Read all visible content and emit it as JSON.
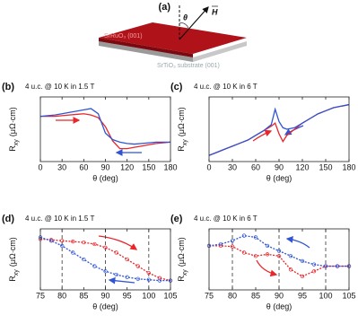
{
  "diagram": {
    "label": "(a)",
    "film": "SrRuO₃ (001)",
    "substrate": "SrTiO₃ substrate (001)",
    "angle": "θ",
    "field": "H"
  },
  "chart_data": [
    {
      "type": "line",
      "panel": "(b)",
      "title": "4 u.c. @ 10 K in 1.5 T",
      "xlabel": "θ (deg)",
      "ylabel": "R",
      "ylabel_sub": "xy",
      "ylabel_unit": "(μΩ·cm)",
      "xlim": [
        0,
        180
      ],
      "xticks": [
        0,
        30,
        60,
        90,
        120,
        150,
        180
      ],
      "ylim": [
        -2.5,
        2.5
      ],
      "markers": false,
      "x": [
        0,
        10,
        20,
        30,
        40,
        50,
        60,
        70,
        80,
        90,
        100,
        110,
        120,
        130,
        140,
        150,
        160,
        170,
        180
      ],
      "series": [
        {
          "color": "#e8262b",
          "values": [
            1.0,
            1.0,
            1.0,
            1.05,
            1.1,
            1.15,
            1.2,
            1.1,
            0.9,
            0.2,
            -0.9,
            -1.5,
            -1.5,
            -1.4,
            -1.3,
            -1.2,
            -1.1,
            -1.05,
            -1.0
          ]
        },
        {
          "color": "#2f55d4",
          "values": [
            1.0,
            1.05,
            1.1,
            1.2,
            1.3,
            1.4,
            1.5,
            1.6,
            1.2,
            -0.3,
            -0.8,
            -1.0,
            -1.1,
            -1.15,
            -1.1,
            -1.05,
            -1.0,
            -1.0,
            -1.0
          ]
        }
      ]
    },
    {
      "type": "line",
      "panel": "(c)",
      "title": "4 u.c. @ 10 K in 6 T",
      "xlabel": "θ (deg)",
      "ylabel": "R",
      "ylabel_sub": "xy",
      "ylabel_unit": "(μΩ·cm)",
      "xlim": [
        0,
        180
      ],
      "xticks": [
        0,
        30,
        60,
        90,
        120,
        150,
        180
      ],
      "ylim": [
        -0.8,
        1.3
      ],
      "markers": false,
      "x": [
        0,
        10,
        20,
        30,
        40,
        50,
        60,
        70,
        80,
        85,
        90,
        95,
        100,
        110,
        120,
        130,
        140,
        150,
        160,
        170,
        180
      ],
      "series": [
        {
          "color": "#e8262b",
          "values": [
            -0.6,
            -0.5,
            -0.4,
            -0.3,
            -0.2,
            -0.1,
            0.05,
            0.2,
            0.35,
            0.45,
            0.1,
            -0.15,
            0.05,
            0.25,
            0.45,
            0.6,
            0.75,
            0.85,
            0.95,
            1.0,
            1.05
          ]
        },
        {
          "color": "#2f55d4",
          "values": [
            -0.6,
            -0.5,
            -0.4,
            -0.3,
            -0.2,
            -0.1,
            0.05,
            0.2,
            0.4,
            0.9,
            0.5,
            0.3,
            0.25,
            0.3,
            0.45,
            0.6,
            0.75,
            0.85,
            0.95,
            1.0,
            1.05
          ]
        }
      ]
    },
    {
      "type": "line",
      "panel": "(d)",
      "title": "4 u.c. @ 10 K in 1.5 T",
      "xlabel": "θ (deg)",
      "ylabel": "R",
      "ylabel_sub": "xy",
      "ylabel_unit": "(μΩ·cm)",
      "xlim": [
        75,
        105
      ],
      "xticks": [
        75,
        80,
        85,
        90,
        95,
        100,
        105
      ],
      "ylim": [
        -1.8,
        1.8
      ],
      "markers": true,
      "vlines": [
        80,
        90,
        100
      ],
      "x": [
        75,
        77.5,
        80,
        82.5,
        85,
        87.5,
        90,
        92.5,
        95,
        97.5,
        100,
        102.5,
        105
      ],
      "series": [
        {
          "color": "#e8262b",
          "values": [
            1.2,
            1.15,
            1.1,
            1.05,
            1.0,
            0.9,
            0.7,
            0.4,
            0.0,
            -0.4,
            -0.8,
            -1.1,
            -1.25
          ]
        },
        {
          "color": "#2f55d4",
          "values": [
            1.3,
            1.1,
            0.8,
            0.4,
            0.0,
            -0.4,
            -0.7,
            -0.9,
            -1.05,
            -1.15,
            -1.2,
            -1.25,
            -1.25
          ]
        }
      ]
    },
    {
      "type": "line",
      "panel": "(e)",
      "title": "4 u.c. @ 10 K in 6 T",
      "xlabel": "θ (deg)",
      "ylabel": "R",
      "ylabel_sub": "xy",
      "ylabel_unit": "(μΩ·cm)",
      "xlim": [
        75,
        105
      ],
      "xticks": [
        75,
        80,
        85,
        90,
        95,
        100,
        105
      ],
      "ylim": [
        -1.0,
        0.8
      ],
      "markers": true,
      "vlines": [
        80,
        90,
        100
      ],
      "x": [
        75,
        77.5,
        80,
        82.5,
        85,
        87.5,
        90,
        92.5,
        95,
        97.5,
        100,
        102.5,
        105
      ],
      "series": [
        {
          "color": "#e8262b",
          "values": [
            0.3,
            0.3,
            0.28,
            0.1,
            0.0,
            0.05,
            0.0,
            -0.4,
            -0.6,
            -0.45,
            -0.3,
            -0.3,
            -0.3
          ]
        },
        {
          "color": "#2f55d4",
          "values": [
            0.3,
            0.35,
            0.45,
            0.6,
            0.55,
            0.3,
            0.15,
            0.0,
            -0.15,
            -0.25,
            -0.3,
            -0.3,
            -0.3
          ]
        }
      ]
    }
  ]
}
